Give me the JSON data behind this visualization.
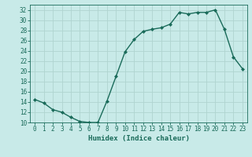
{
  "x": [
    0,
    1,
    2,
    3,
    4,
    5,
    6,
    7,
    8,
    9,
    10,
    11,
    12,
    13,
    14,
    15,
    16,
    17,
    18,
    19,
    20,
    21,
    22,
    23
  ],
  "y": [
    14.5,
    13.8,
    12.5,
    12.0,
    11.0,
    10.2,
    10.0,
    10.0,
    14.2,
    19.0,
    23.8,
    26.2,
    27.8,
    28.2,
    28.5,
    29.2,
    31.5,
    31.2,
    31.5,
    31.5,
    32.0,
    28.2,
    22.8,
    20.5
  ],
  "line_color": "#1a6b5a",
  "marker": "D",
  "marker_size": 2.0,
  "bg_color": "#c8eae8",
  "grid_color": "#afd4d0",
  "xlabel": "Humidex (Indice chaleur)",
  "xlim": [
    -0.5,
    23.5
  ],
  "ylim": [
    10,
    33
  ],
  "yticks": [
    10,
    12,
    14,
    16,
    18,
    20,
    22,
    24,
    26,
    28,
    30,
    32
  ],
  "xticks": [
    0,
    1,
    2,
    3,
    4,
    5,
    6,
    7,
    8,
    9,
    10,
    11,
    12,
    13,
    14,
    15,
    16,
    17,
    18,
    19,
    20,
    21,
    22,
    23
  ],
  "xlabel_fontsize": 6.5,
  "tick_fontsize": 5.5,
  "line_width": 1.0
}
